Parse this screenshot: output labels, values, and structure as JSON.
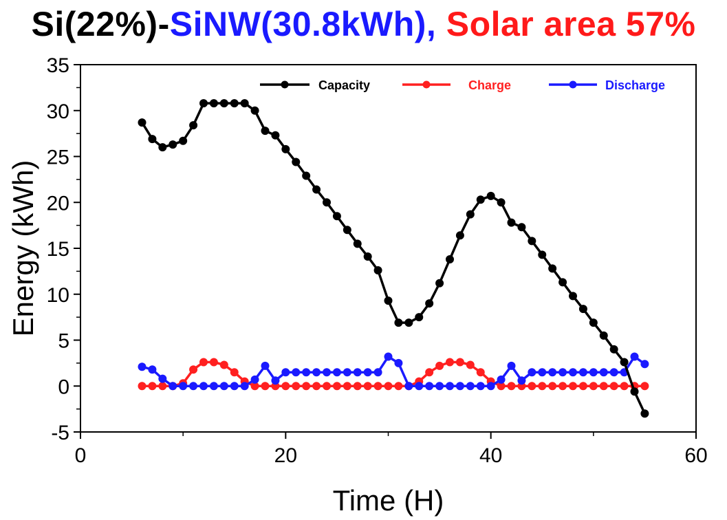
{
  "title_parts": [
    {
      "text": "Si(22%)-",
      "color": "#000000"
    },
    {
      "text": "SiNW(30.8kWh), ",
      "color": "#1a1aff"
    },
    {
      "text": "Solar area 57%",
      "color": "#ff1a1a"
    }
  ],
  "chart_data": {
    "type": "line",
    "xlabel": "Time (H)",
    "ylabel": "Energy (kWh)",
    "xlim": [
      0,
      60
    ],
    "ylim": [
      -5,
      35
    ],
    "xticks": [
      0,
      20,
      40,
      60
    ],
    "yticks": [
      -5,
      0,
      5,
      10,
      15,
      20,
      25,
      30,
      35
    ],
    "grid": false,
    "legend_position": "top",
    "x": [
      6,
      7,
      8,
      9,
      10,
      11,
      12,
      13,
      14,
      15,
      16,
      17,
      18,
      19,
      20,
      21,
      22,
      23,
      24,
      25,
      26,
      27,
      28,
      29,
      30,
      31,
      32,
      33,
      34,
      35,
      36,
      37,
      38,
      39,
      40,
      41,
      42,
      43,
      44,
      45,
      46,
      47,
      48,
      49,
      50,
      51,
      52,
      53,
      54,
      55
    ],
    "series": [
      {
        "name": "Capacity",
        "color": "#000000",
        "values": [
          28.7,
          26.9,
          26.0,
          26.3,
          26.7,
          28.4,
          30.8,
          30.8,
          30.8,
          30.8,
          30.8,
          30.0,
          27.8,
          27.3,
          25.8,
          24.4,
          22.9,
          21.4,
          20.0,
          18.5,
          17.0,
          15.5,
          14.1,
          12.6,
          9.3,
          6.9,
          6.9,
          7.5,
          9.0,
          11.2,
          13.8,
          16.4,
          18.7,
          20.3,
          20.7,
          20.0,
          17.8,
          17.3,
          15.8,
          14.3,
          12.8,
          11.3,
          9.8,
          8.4,
          6.9,
          5.5,
          4.0,
          2.6,
          -0.6,
          -3.0
        ]
      },
      {
        "name": "Charge",
        "color": "#ff2020",
        "values": [
          0,
          0,
          0,
          0,
          0.3,
          1.8,
          2.6,
          2.6,
          2.3,
          1.5,
          0.5,
          0,
          0,
          0,
          0,
          0,
          0,
          0,
          0,
          0,
          0,
          0,
          0,
          0,
          0,
          0,
          0,
          0.5,
          1.5,
          2.2,
          2.6,
          2.6,
          2.3,
          1.5,
          0.5,
          0,
          0,
          0,
          0,
          0,
          0,
          0,
          0,
          0,
          0,
          0,
          0,
          0,
          0,
          0
        ]
      },
      {
        "name": "Discharge",
        "color": "#1a1aff",
        "values": [
          2.1,
          1.8,
          0.8,
          0,
          0,
          0,
          0,
          0,
          0,
          0,
          0,
          0.7,
          2.2,
          0.6,
          1.5,
          1.5,
          1.5,
          1.5,
          1.5,
          1.5,
          1.5,
          1.5,
          1.5,
          1.5,
          3.2,
          2.5,
          0,
          0,
          0,
          0,
          0,
          0,
          0,
          0,
          0,
          0.7,
          2.2,
          0.6,
          1.5,
          1.5,
          1.5,
          1.5,
          1.5,
          1.5,
          1.5,
          1.5,
          1.5,
          1.5,
          3.2,
          2.4
        ]
      }
    ]
  }
}
